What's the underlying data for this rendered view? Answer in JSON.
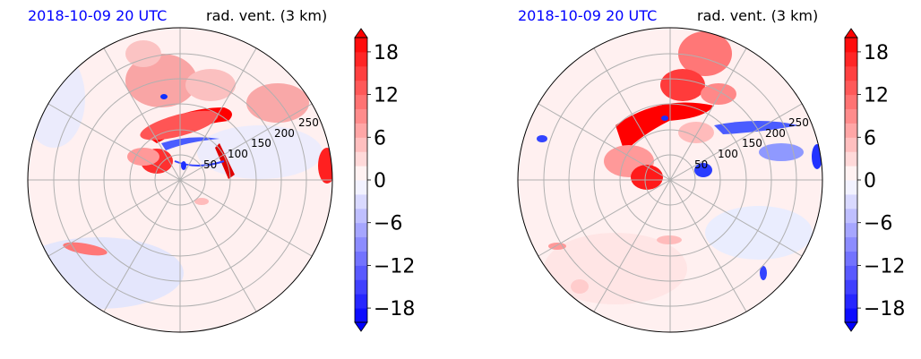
{
  "panels": [
    {
      "title_left": "2018-10-09 20 UTC",
      "title_right": "rad. vent. (3 km)",
      "range_labels": [
        "50",
        "100",
        "150",
        "200",
        "250"
      ]
    },
    {
      "title_left": "2018-10-09 20 UTC",
      "title_right": "rad. vent. (3 km)",
      "range_labels": [
        "50",
        "100",
        "150",
        "200",
        "250"
      ]
    }
  ],
  "colorbar": {
    "tick_labels": [
      "18",
      "12",
      "6",
      "0",
      "−6",
      "−12",
      "−18"
    ],
    "tick_values": [
      18,
      12,
      6,
      0,
      -6,
      -12,
      -18
    ],
    "range": [
      -20,
      20
    ],
    "level_step": 2,
    "colormap": "bwr",
    "extend": "both"
  },
  "chart_data": [
    {
      "type": "heatmap",
      "title": "rad. vent. (3 km)",
      "subtitle": "2018-10-09 20 UTC",
      "projection": "polar",
      "range_rings": [
        50,
        100,
        150,
        200,
        250
      ],
      "color_range": [
        -20,
        20
      ]
    },
    {
      "type": "heatmap",
      "title": "rad. vent. (3 km)",
      "subtitle": "2018-10-09 20 UTC",
      "projection": "polar",
      "range_rings": [
        50,
        100,
        150,
        200,
        250
      ],
      "color_range": [
        -20,
        20
      ]
    }
  ],
  "colors": {
    "title_time": "#0000ff",
    "grid": "#b0b0b0",
    "background_field": "#fff0f0"
  }
}
